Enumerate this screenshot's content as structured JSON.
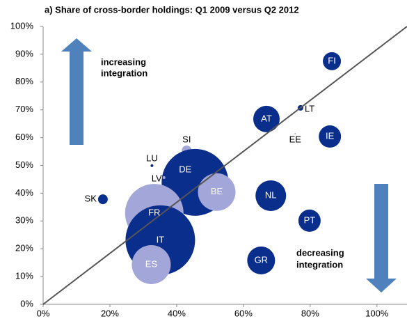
{
  "chart_data": {
    "type": "bubble",
    "title": "a) Share of cross-border holdings: Q1 2009 versus Q2 2012",
    "annotations": [
      [
        "increasing",
        "integration"
      ],
      [
        "decreasing",
        "integration"
      ]
    ],
    "labels": [
      "FI",
      "LT",
      "AT",
      "EE",
      "IE",
      "SI",
      "LU",
      "DE",
      "LV",
      "BE",
      "NL",
      "SK",
      "FR",
      "PT",
      "IT",
      "GR",
      "ES"
    ],
    "x": [
      86.5,
      77.1,
      66.9,
      75.5,
      85.9,
      43,
      32.6,
      45.5,
      36.2,
      52,
      68.2,
      17.9,
      33.3,
      79.8,
      35.1,
      65.3,
      32.4
    ],
    "y": [
      87.5,
      70.7,
      66.7,
      61.4,
      60.4,
      55.4,
      49.9,
      43.9,
      45.6,
      40.4,
      39.1,
      37.8,
      32.8,
      30.1,
      23.1,
      15.8,
      14.3
    ],
    "sizes": [
      169,
      16,
      361,
      1,
      256,
      49,
      4,
      2304,
      4,
      729,
      484,
      49,
      1764,
      256,
      2500,
      400,
      784
    ],
    "colors": [
      "#0a2e8c",
      "#0a2e8c",
      "#0a2e8c",
      "#a3a6d8",
      "#0a2e8c",
      "#a3a6d8",
      "#0a2e8c",
      "#0a2e8c",
      "#a3a6d8",
      "#a3a6d8",
      "#0a2e8c",
      "#0a2e8c",
      "#a3a6d8",
      "#0a2e8c",
      "#0a2e8c",
      "#0a2e8c",
      "#a3a6d8"
    ],
    "xlim": [
      0,
      109
    ],
    "ylim": [
      0,
      100
    ],
    "xticks": [
      {
        "value": 0,
        "label": "0%"
      },
      {
        "value": 20,
        "label": "20%"
      },
      {
        "value": 40,
        "label": "40%"
      },
      {
        "value": 60,
        "label": "60%"
      },
      {
        "value": 80,
        "label": "80%"
      },
      {
        "value": 100,
        "label": "100%"
      }
    ],
    "yticks": [
      {
        "value": 0,
        "label": "0%"
      },
      {
        "value": 10,
        "label": "10%"
      },
      {
        "value": 20,
        "label": "20%"
      },
      {
        "value": 30,
        "label": "30%"
      },
      {
        "value": 40,
        "label": "40%"
      },
      {
        "value": 50,
        "label": "50%"
      },
      {
        "value": 60,
        "label": "60%"
      },
      {
        "value": 70,
        "label": "70%"
      },
      {
        "value": 80,
        "label": "80%"
      },
      {
        "value": 90,
        "label": "90%"
      },
      {
        "value": 100,
        "label": "100%"
      }
    ]
  }
}
